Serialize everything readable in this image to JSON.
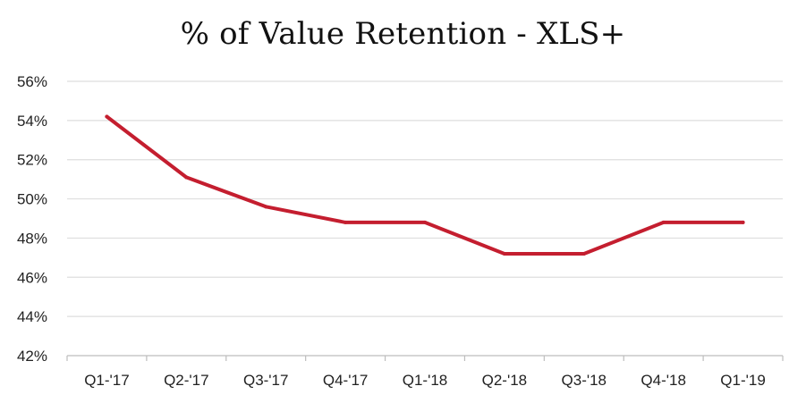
{
  "chart_data": {
    "type": "line",
    "title": "% of Value Retention - XLS+",
    "xlabel": "",
    "ylabel": "",
    "categories": [
      "Q1-'17",
      "Q2-'17",
      "Q3-'17",
      "Q4-'17",
      "Q1-'18",
      "Q2-'18",
      "Q3-'18",
      "Q4-'18",
      "Q1-'19"
    ],
    "series": [
      {
        "values": [
          54.2,
          51.1,
          49.6,
          48.8,
          48.8,
          47.2,
          47.2,
          48.8,
          48.8
        ],
        "color": "#c41e2f"
      }
    ],
    "ylim": [
      42,
      56
    ],
    "yticks": [
      42,
      44,
      46,
      48,
      50,
      52,
      54,
      56
    ],
    "ytick_labels": [
      "42%",
      "44%",
      "46%",
      "48%",
      "50%",
      "52%",
      "54%",
      "56%"
    ],
    "grid": true,
    "legend": "none"
  }
}
